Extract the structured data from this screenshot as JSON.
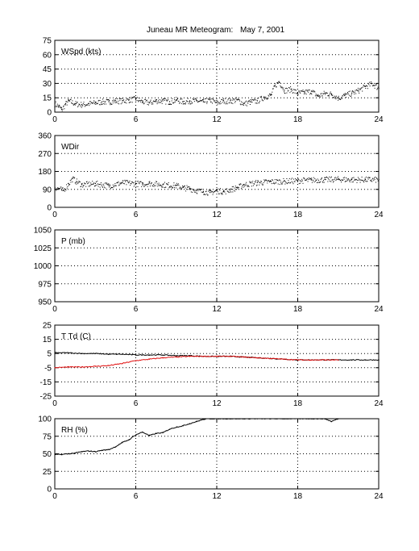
{
  "title": {
    "station": "Juneau MR Meteogram:",
    "date": "May  7, 2001"
  },
  "chart_data": [
    {
      "id": "wspd",
      "type": "scatter",
      "label": "WSpd (kts)",
      "xlim": [
        0,
        24
      ],
      "ylim": [
        0,
        75
      ],
      "xticks": [
        "0",
        "6",
        "12",
        "18",
        "24"
      ],
      "yticks": [
        "0",
        "15",
        "30",
        "45",
        "60",
        "75"
      ],
      "grid": "dotted",
      "series": [
        {
          "color": "#000000",
          "style": "dots",
          "x": [
            0,
            0.3,
            0.5,
            0.8,
            1,
            1.5,
            2,
            2.5,
            3,
            3.5,
            4,
            4.5,
            5,
            5.5,
            6,
            6.5,
            7,
            7.5,
            8,
            8.5,
            9,
            9.5,
            10,
            10.5,
            11,
            11.5,
            12,
            12.5,
            13,
            13.5,
            14,
            14.5,
            15,
            15.5,
            16,
            16.3,
            16.6,
            17,
            17.5,
            18,
            18.5,
            19,
            19.5,
            20,
            20.5,
            21,
            21.5,
            22,
            22.5,
            23,
            23.5,
            24
          ],
          "y": [
            9,
            6,
            3,
            9,
            12,
            9,
            8,
            9,
            10,
            11,
            11,
            12,
            12,
            13,
            14,
            11,
            10,
            12,
            12,
            11,
            13,
            11,
            12,
            12,
            11,
            13,
            10,
            12,
            12,
            13,
            9,
            11,
            12,
            16,
            18,
            28,
            32,
            23,
            24,
            20,
            21,
            22,
            17,
            20,
            19,
            15,
            18,
            20,
            23,
            27,
            30,
            25
          ]
        }
      ]
    },
    {
      "id": "wdir",
      "type": "scatter",
      "label": "WDir",
      "xlim": [
        0,
        24
      ],
      "ylim": [
        0,
        360
      ],
      "xticks": [
        "0",
        "6",
        "12",
        "18",
        "24"
      ],
      "yticks": [
        "0",
        "90",
        "180",
        "270",
        "360"
      ],
      "grid": "dotted",
      "series": [
        {
          "color": "#000000",
          "style": "dots",
          "x": [
            0,
            0.3,
            0.6,
            1,
            1.3,
            1.6,
            2,
            3,
            4,
            5,
            6,
            6.5,
            7,
            8,
            9,
            9.5,
            10,
            10.5,
            11,
            11.5,
            12,
            12.5,
            13,
            13.5,
            14,
            15,
            16,
            17,
            18,
            19,
            20,
            21,
            22,
            23,
            24
          ],
          "y": [
            100,
            95,
            85,
            120,
            145,
            130,
            115,
            120,
            110,
            125,
            120,
            118,
            122,
            115,
            110,
            100,
            95,
            85,
            80,
            75,
            85,
            80,
            90,
            100,
            115,
            125,
            130,
            132,
            135,
            138,
            140,
            142,
            140,
            140,
            140
          ]
        }
      ]
    },
    {
      "id": "pres",
      "type": "line",
      "label": "P (mb)",
      "xlim": [
        0,
        24
      ],
      "ylim": [
        950,
        1050
      ],
      "xticks": [
        "0",
        "6",
        "12",
        "18",
        "24"
      ],
      "yticks": [
        "950",
        "975",
        "1000",
        "1025",
        "1050"
      ],
      "grid": "dotted",
      "series": []
    },
    {
      "id": "ttd",
      "type": "line",
      "label": "T Td (C)",
      "xlim": [
        0,
        24
      ],
      "ylim": [
        -25,
        25
      ],
      "xticks": [
        "0",
        "6",
        "12",
        "18",
        "24"
      ],
      "yticks": [
        "-25",
        "-15",
        "-5",
        "5",
        "15",
        "25"
      ],
      "grid": "dotted",
      "series": [
        {
          "color": "#000000",
          "style": "line",
          "x": [
            0,
            1,
            2,
            3,
            4,
            5,
            6,
            7,
            8,
            9,
            10,
            11,
            12,
            13,
            14,
            15,
            16,
            17,
            18,
            19,
            20,
            21,
            22,
            23,
            24
          ],
          "y": [
            5.5,
            5.5,
            5,
            5,
            4.5,
            4.5,
            4,
            4,
            4,
            3.5,
            3.5,
            3,
            3,
            3,
            2.5,
            2,
            1.5,
            1,
            0.5,
            0.5,
            0.5,
            0.5,
            0.5,
            0.5,
            0.5
          ]
        },
        {
          "color": "#e01010",
          "style": "line",
          "x": [
            0,
            1,
            2,
            3,
            4,
            5,
            6,
            7,
            8,
            9,
            10,
            10.5,
            11,
            12,
            13,
            14,
            15,
            16,
            17,
            18,
            19,
            20,
            21
          ],
          "y": [
            -5,
            -4.5,
            -4.5,
            -4,
            -3.5,
            -2,
            0,
            1,
            2,
            2.5,
            3,
            3,
            3,
            3,
            3,
            2.5,
            2,
            1.5,
            1,
            0.5,
            0.5,
            0.5,
            0.5
          ]
        }
      ]
    },
    {
      "id": "rh",
      "type": "scatter",
      "label": "RH (%)",
      "xlim": [
        0,
        24
      ],
      "ylim": [
        0,
        100
      ],
      "xticks": [
        "0",
        "6",
        "12",
        "18",
        "24"
      ],
      "yticks": [
        "0",
        "25",
        "50",
        "75",
        "100"
      ],
      "grid": "dotted",
      "series": [
        {
          "color": "#000000",
          "style": "line",
          "x": [
            0,
            0.5,
            1,
            1.5,
            2,
            2.5,
            3,
            3.5,
            4,
            4.5,
            5,
            5.5,
            6,
            6.5,
            7,
            7.5,
            8,
            8.5,
            9,
            9.5,
            10,
            10.5,
            11,
            11.5,
            12,
            13,
            14,
            15,
            16,
            17,
            18,
            19,
            20,
            20.5,
            21
          ],
          "y": [
            49,
            49,
            50,
            51,
            53,
            54,
            53,
            55,
            56,
            60,
            66,
            70,
            77,
            81,
            76,
            79,
            80,
            85,
            88,
            90,
            93,
            96,
            99,
            100,
            100,
            100,
            100,
            100,
            100,
            100,
            100,
            100,
            100,
            96,
            100
          ]
        }
      ]
    }
  ]
}
